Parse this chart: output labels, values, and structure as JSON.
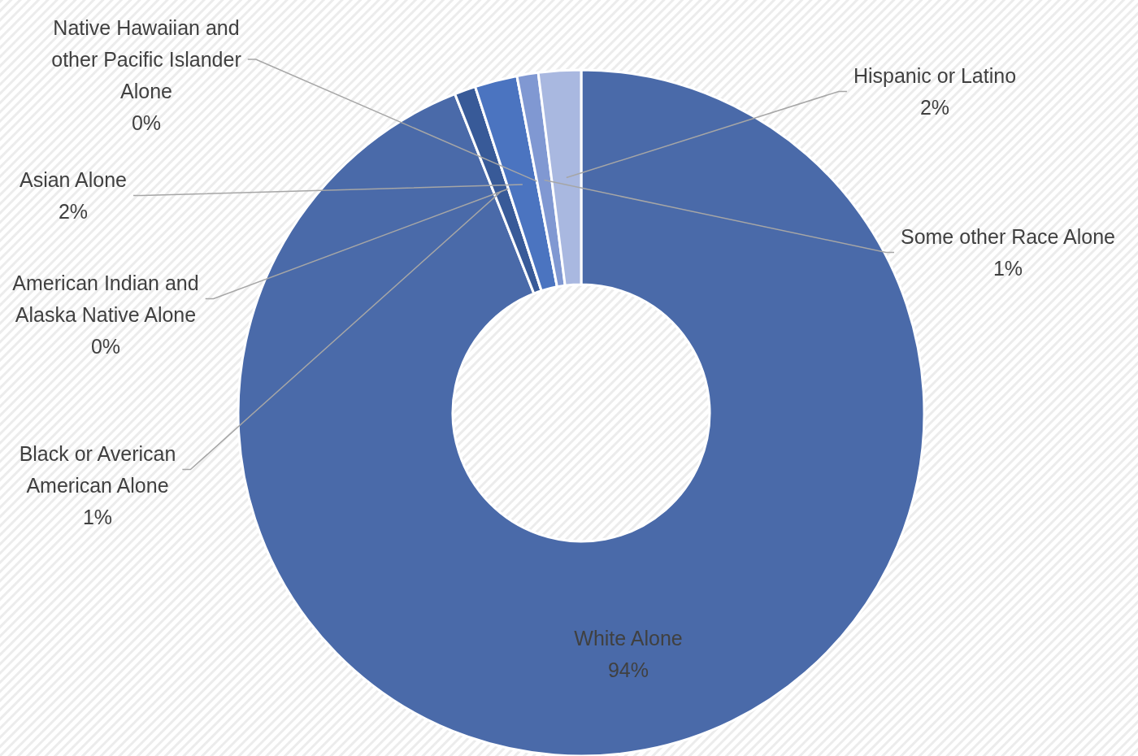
{
  "chart_data": {
    "type": "donut",
    "categories": [
      "White Alone",
      "Black or Averican American Alone",
      "American Indian and Alaska Native Alone",
      "Asian Alone",
      "Native Hawaiian and other Pacific Islander Alone",
      "Some other Race Alone",
      "Hispanic or Latino"
    ],
    "values": [
      94,
      1,
      0,
      2,
      0,
      1,
      2
    ],
    "colors": [
      "#4a6aa9",
      "#385a98",
      "#3f5f9c",
      "#4b74c0",
      "#7f96d0",
      "#8098d2",
      "#a9b8e0"
    ],
    "value_labels": [
      "94%",
      "1%",
      "0%",
      "2%",
      "0%",
      "1%",
      "2%"
    ]
  }
}
